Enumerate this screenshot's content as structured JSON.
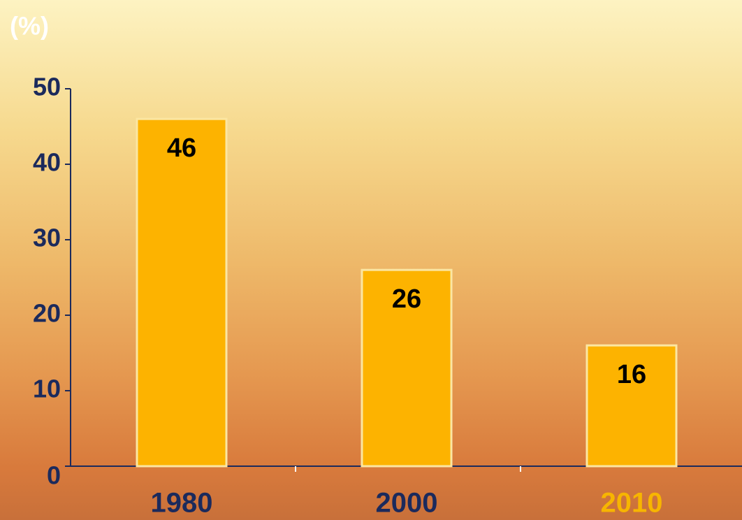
{
  "chart_data": {
    "type": "bar",
    "y_label": "(%)",
    "categories": [
      "1980",
      "2000",
      "2010"
    ],
    "values": [
      46,
      26,
      16
    ],
    "color": "#fdb300",
    "category_label_colors": [
      "#1b2a5c",
      "#1b2a5c",
      "#f7b500"
    ],
    "ylim": [
      0,
      50
    ],
    "yticks": [
      0,
      10,
      20,
      30,
      40,
      50
    ],
    "grid": false
  }
}
